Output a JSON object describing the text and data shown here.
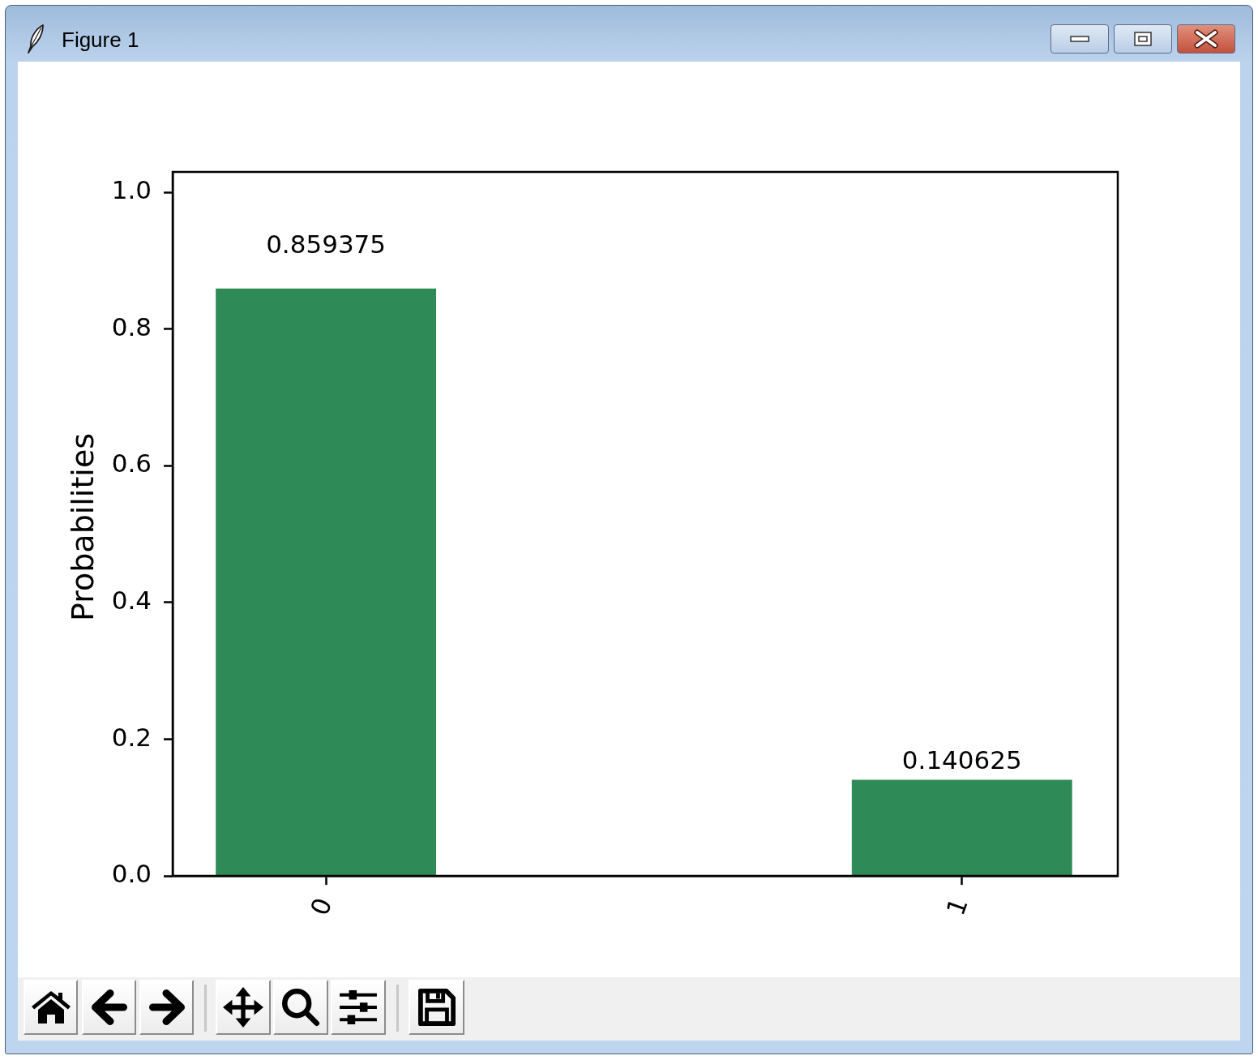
{
  "chart_data": {
    "type": "bar",
    "ylabel": "Probabilities",
    "categories": [
      "0",
      "1"
    ],
    "values": [
      0.859375,
      0.140625
    ],
    "color": "#2e8b57",
    "ylim": [
      0,
      1.03
    ],
    "yticks": [
      {
        "value": 0,
        "label": "0.0"
      },
      0.2,
      0.4,
      0.6,
      0.8,
      {
        "value": 1,
        "label": "1.0"
      }
    ],
    "data_labels": true,
    "annotations": [
      "Figure 1"
    ]
  }
}
